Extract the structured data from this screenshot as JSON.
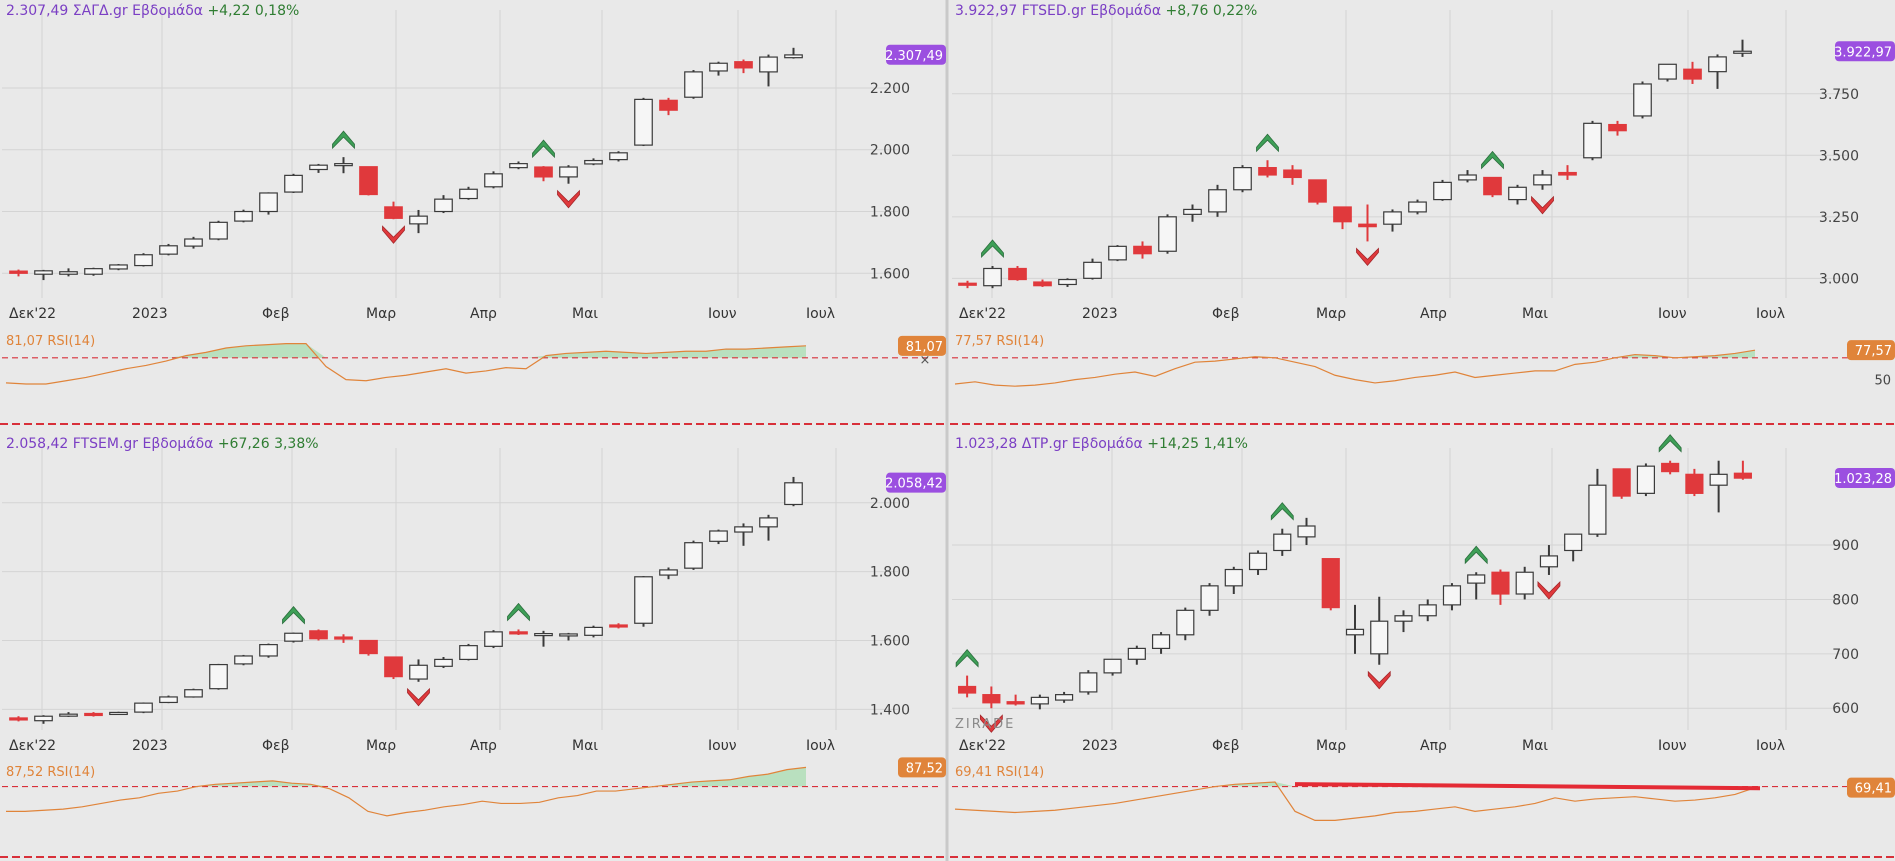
{
  "colors": {
    "bg": "#e9e9e9",
    "grid": "#d4d4d4",
    "up_fill": "#f6f6f6",
    "up_stroke": "#3a3a3a",
    "down": "#e0393c",
    "dark_candle": "#555555",
    "rsi_line": "#e0843a",
    "rsi_fill": "#b9e0bf",
    "level_line": "#d8303a",
    "header_value": "#7b3fc4",
    "header_change": "#2f7d32",
    "price_badge": "#9b4fe0",
    "rsi_badge": "#e0843a",
    "signal_up": "#3e9f57",
    "signal_down": "#e0393c",
    "trend_line": "#e42b35"
  },
  "watermark": "ZIRADE",
  "charts": [
    {
      "header": {
        "value": "2.307,49",
        "symbol": "ΣΑΓΔ.gr",
        "period": "Εβδομάδα",
        "change": "+4,22",
        "pct": "0,18%"
      },
      "price_badge": "2.307,49",
      "rsi": {
        "label": "81,07 RSI(14)",
        "badge": "81,07",
        "axis_label": "",
        "closer": "×"
      }
    },
    {
      "header": {
        "value": "3.922,97",
        "symbol": "FTSED.gr",
        "period": "Εβδομάδα",
        "change": "+8,76",
        "pct": "0,22%"
      },
      "price_badge": "3.922,97",
      "rsi": {
        "label": "77,57 RSI(14)",
        "badge": "77,57",
        "axis_label": "50",
        "closer": ""
      }
    },
    {
      "header": {
        "value": "2.058,42",
        "symbol": "FTSEM.gr",
        "period": "Εβδομάδα",
        "change": "+67,26",
        "pct": "3,38%"
      },
      "price_badge": "2.058,42",
      "rsi": {
        "label": "87,52 RSI(14)",
        "badge": "87,52",
        "axis_label": "",
        "closer": ""
      }
    },
    {
      "header": {
        "value": "1.023,28",
        "symbol": "ΔΤΡ.gr",
        "period": "Εβδομάδα",
        "change": "+14,25",
        "pct": "1,41%"
      },
      "price_badge": "1.023,28",
      "rsi": {
        "label": "69,41 RSI(14)",
        "badge": "69,41",
        "axis_label": "",
        "closer": ""
      }
    }
  ],
  "chart_data": [
    {
      "type": "candlestick",
      "title": "ΣΑΓΔ.gr Εβδομάδα",
      "x_ticks": [
        "Δεκ'22",
        "2023",
        "Φεβ",
        "Μαρ",
        "Απρ",
        "Μαι",
        "Ιουν",
        "Ιουλ"
      ],
      "y_ticks": [
        "1.600",
        "1.800",
        "2.000",
        "2.200"
      ],
      "ylim": [
        1520,
        2420
      ],
      "y_tick_values": [
        1600,
        1800,
        2000,
        2200
      ],
      "last_price": 2307.49,
      "ohlc": [
        [
          1607,
          1612,
          1590,
          1600
        ],
        [
          1597,
          1611,
          1578,
          1608
        ],
        [
          1597,
          1616,
          1590,
          1605
        ],
        [
          1597,
          1618,
          1592,
          1615
        ],
        [
          1614,
          1630,
          1610,
          1627
        ],
        [
          1625,
          1665,
          1622,
          1660
        ],
        [
          1662,
          1695,
          1658,
          1689
        ],
        [
          1688,
          1718,
          1680,
          1711
        ],
        [
          1711,
          1770,
          1707,
          1765
        ],
        [
          1769,
          1806,
          1765,
          1800
        ],
        [
          1800,
          1862,
          1790,
          1860
        ],
        [
          1863,
          1922,
          1860,
          1917
        ],
        [
          1936,
          1954,
          1925,
          1950
        ],
        [
          1952,
          1976,
          1924,
          1955
        ],
        [
          1945,
          1945,
          1852,
          1855
        ],
        [
          1815,
          1832,
          1775,
          1778
        ],
        [
          1760,
          1805,
          1730,
          1785
        ],
        [
          1800,
          1853,
          1795,
          1840
        ],
        [
          1842,
          1880,
          1838,
          1872
        ],
        [
          1880,
          1930,
          1875,
          1922
        ],
        [
          1942,
          1962,
          1937,
          1955
        ],
        [
          1944,
          1947,
          1898,
          1912
        ],
        [
          1912,
          1950,
          1890,
          1944
        ],
        [
          1954,
          1972,
          1950,
          1965
        ],
        [
          1968,
          1995,
          1962,
          1990
        ],
        [
          2015,
          2168,
          2012,
          2163
        ],
        [
          2160,
          2168,
          2112,
          2128
        ],
        [
          2170,
          2258,
          2165,
          2252
        ],
        [
          2255,
          2285,
          2240,
          2280
        ],
        [
          2285,
          2292,
          2248,
          2265
        ],
        [
          2252,
          2308,
          2205,
          2300
        ],
        [
          2298,
          2330,
          2295,
          2307
        ]
      ],
      "rsi": [
        47,
        46,
        46,
        49,
        52,
        56,
        60,
        63,
        67,
        72,
        75,
        79,
        81,
        82,
        83,
        83,
        62,
        50,
        49,
        52,
        54,
        57,
        60,
        56,
        58,
        61,
        60,
        72,
        74,
        75,
        76,
        75,
        74,
        75,
        76,
        76,
        78,
        78,
        79,
        80,
        81
      ]
    },
    {
      "type": "candlestick",
      "title": "FTSED.gr Εβδομάδα",
      "x_ticks": [
        "Δεκ'22",
        "2023",
        "Φεβ",
        "Μαρ",
        "Απρ",
        "Μαι",
        "Ιουν",
        "Ιουλ"
      ],
      "y_ticks": [
        "3.000",
        "3.250",
        "3.500",
        "3.750"
      ],
      "ylim": [
        2920,
        4050
      ],
      "y_tick_values": [
        3000,
        3250,
        3500,
        3750
      ],
      "last_price": 3922.97,
      "ohlc": [
        [
          2980,
          2990,
          2960,
          2975
        ],
        [
          2970,
          3050,
          2960,
          3040
        ],
        [
          3040,
          3050,
          2990,
          2995
        ],
        [
          2985,
          2995,
          2965,
          2970
        ],
        [
          2975,
          3000,
          2965,
          2995
        ],
        [
          3000,
          3080,
          2995,
          3065
        ],
        [
          3075,
          3135,
          3070,
          3130
        ],
        [
          3130,
          3150,
          3080,
          3100
        ],
        [
          3110,
          3260,
          3100,
          3250
        ],
        [
          3260,
          3300,
          3230,
          3280
        ],
        [
          3270,
          3380,
          3250,
          3360
        ],
        [
          3360,
          3460,
          3350,
          3450
        ],
        [
          3450,
          3480,
          3410,
          3420
        ],
        [
          3440,
          3460,
          3380,
          3410
        ],
        [
          3400,
          3400,
          3300,
          3310
        ],
        [
          3290,
          3290,
          3200,
          3230
        ],
        [
          3220,
          3300,
          3150,
          3210
        ],
        [
          3220,
          3280,
          3190,
          3270
        ],
        [
          3270,
          3320,
          3260,
          3310
        ],
        [
          3320,
          3400,
          3315,
          3390
        ],
        [
          3400,
          3440,
          3390,
          3420
        ],
        [
          3410,
          3410,
          3330,
          3340
        ],
        [
          3320,
          3380,
          3300,
          3370
        ],
        [
          3380,
          3440,
          3360,
          3420
        ],
        [
          3430,
          3460,
          3400,
          3420
        ],
        [
          3490,
          3640,
          3480,
          3630
        ],
        [
          3625,
          3640,
          3580,
          3600
        ],
        [
          3660,
          3800,
          3650,
          3790
        ],
        [
          3810,
          3870,
          3800,
          3870
        ],
        [
          3850,
          3880,
          3790,
          3810
        ],
        [
          3840,
          3910,
          3770,
          3900
        ],
        [
          3915,
          3970,
          3900,
          3923
        ]
      ],
      "rsi": [
        46,
        48,
        45,
        44,
        45,
        47,
        50,
        52,
        55,
        57,
        53,
        60,
        66,
        67,
        69,
        71,
        70,
        66,
        62,
        54,
        50,
        47,
        49,
        52,
        54,
        57,
        52,
        54,
        56,
        58,
        58,
        64,
        66,
        70,
        73,
        72,
        70,
        71,
        72,
        74,
        77
      ]
    },
    {
      "type": "candlestick",
      "title": "FTSEM.gr Εβδομάδα",
      "x_ticks": [
        "Δεκ'22",
        "2023",
        "Φεβ",
        "Μαρ",
        "Απρ",
        "Μαι",
        "Ιουν",
        "Ιουλ"
      ],
      "y_ticks": [
        "1.400",
        "1.600",
        "1.800",
        "2.000"
      ],
      "ylim": [
        1340,
        2130
      ],
      "y_tick_values": [
        1400,
        1600,
        1800,
        2000
      ],
      "last_price": 2058.42,
      "ohlc": [
        [
          1375,
          1380,
          1365,
          1370
        ],
        [
          1367,
          1383,
          1358,
          1380
        ],
        [
          1382,
          1392,
          1378,
          1386
        ],
        [
          1388,
          1392,
          1379,
          1387
        ],
        [
          1387,
          1393,
          1384,
          1391
        ],
        [
          1392,
          1420,
          1389,
          1418
        ],
        [
          1420,
          1440,
          1418,
          1436
        ],
        [
          1436,
          1460,
          1434,
          1457
        ],
        [
          1460,
          1532,
          1457,
          1530
        ],
        [
          1532,
          1558,
          1528,
          1555
        ],
        [
          1555,
          1591,
          1550,
          1588
        ],
        [
          1598,
          1623,
          1594,
          1621
        ],
        [
          1628,
          1632,
          1600,
          1605
        ],
        [
          1610,
          1618,
          1593,
          1608
        ],
        [
          1600,
          1600,
          1556,
          1562
        ],
        [
          1552,
          1552,
          1488,
          1495
        ],
        [
          1488,
          1545,
          1480,
          1528
        ],
        [
          1525,
          1552,
          1520,
          1545
        ],
        [
          1545,
          1590,
          1542,
          1585
        ],
        [
          1583,
          1630,
          1578,
          1625
        ],
        [
          1625,
          1632,
          1616,
          1624
        ],
        [
          1620,
          1628,
          1582,
          1620
        ],
        [
          1618,
          1622,
          1600,
          1619
        ],
        [
          1615,
          1643,
          1609,
          1638
        ],
        [
          1645,
          1650,
          1635,
          1642
        ],
        [
          1650,
          1787,
          1640,
          1785
        ],
        [
          1790,
          1812,
          1778,
          1805
        ],
        [
          1810,
          1890,
          1805,
          1884
        ],
        [
          1888,
          1922,
          1880,
          1918
        ],
        [
          1915,
          1940,
          1875,
          1930
        ],
        [
          1930,
          1965,
          1890,
          1956
        ],
        [
          1995,
          2075,
          1990,
          2058
        ]
      ],
      "rsi": [
        48,
        48,
        49,
        50,
        52,
        55,
        58,
        60,
        64,
        66,
        70,
        72,
        73,
        74,
        75,
        73,
        72,
        68,
        60,
        48,
        44,
        47,
        49,
        52,
        54,
        57,
        55,
        55,
        56,
        60,
        62,
        66,
        66,
        68,
        70,
        72,
        74,
        75,
        76,
        79,
        81,
        85,
        87
      ]
    },
    {
      "type": "candlestick",
      "title": "ΔΤΡ.gr Εβδομάδα",
      "x_ticks": [
        "Δεκ'22",
        "2023",
        "Φεβ",
        "Μαρ",
        "Απρ",
        "Μαι",
        "Ιουν",
        "Ιουλ"
      ],
      "y_ticks": [
        "600",
        "700",
        "800",
        "900"
      ],
      "ylim": [
        560,
        1060
      ],
      "y_tick_values": [
        600,
        700,
        800,
        900
      ],
      "last_price": 1023.28,
      "ohlc": [
        [
          640,
          660,
          620,
          628
        ],
        [
          625,
          640,
          600,
          610
        ],
        [
          612,
          625,
          605,
          608
        ],
        [
          608,
          625,
          598,
          620
        ],
        [
          615,
          630,
          610,
          625
        ],
        [
          630,
          670,
          625,
          665
        ],
        [
          665,
          690,
          660,
          690
        ],
        [
          690,
          715,
          680,
          710
        ],
        [
          710,
          740,
          700,
          735
        ],
        [
          735,
          785,
          725,
          780
        ],
        [
          780,
          830,
          770,
          825
        ],
        [
          825,
          860,
          810,
          855
        ],
        [
          855,
          890,
          845,
          885
        ],
        [
          890,
          930,
          880,
          920
        ],
        [
          915,
          950,
          900,
          935
        ],
        [
          875,
          875,
          780,
          785
        ],
        [
          735,
          790,
          700,
          745
        ],
        [
          700,
          805,
          680,
          760
        ],
        [
          760,
          780,
          740,
          770
        ],
        [
          770,
          800,
          760,
          790
        ],
        [
          790,
          830,
          780,
          825
        ],
        [
          830,
          850,
          800,
          845
        ],
        [
          850,
          855,
          790,
          810
        ],
        [
          810,
          860,
          800,
          850
        ],
        [
          860,
          900,
          845,
          880
        ],
        [
          890,
          920,
          870,
          920
        ],
        [
          920,
          1040,
          915,
          1010
        ],
        [
          1040,
          1040,
          985,
          990
        ],
        [
          995,
          1050,
          990,
          1045
        ],
        [
          1050,
          1055,
          1030,
          1035
        ],
        [
          1030,
          1040,
          990,
          995
        ],
        [
          1010,
          1055,
          960,
          1030
        ],
        [
          1032,
          1055,
          1020,
          1023
        ]
      ],
      "rsi": [
        50,
        49,
        48,
        47,
        48,
        49,
        51,
        53,
        55,
        58,
        61,
        64,
        67,
        70,
        72,
        73,
        74,
        48,
        40,
        40,
        42,
        44,
        47,
        48,
        50,
        52,
        48,
        50,
        52,
        55,
        60,
        57,
        59,
        60,
        61,
        59,
        57,
        58,
        60,
        63,
        69
      ],
      "trend_line": [
        72.2,
        68.5
      ]
    }
  ]
}
